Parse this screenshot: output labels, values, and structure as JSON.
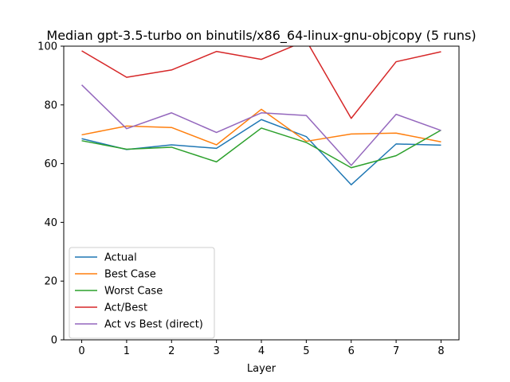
{
  "chart_data": {
    "type": "line",
    "title": "Median gpt-3.5-turbo on binutils/x86_64-linux-gnu-objcopy (5 runs)",
    "xlabel": "Layer",
    "ylabel": "",
    "x": [
      0,
      1,
      2,
      3,
      4,
      5,
      6,
      7,
      8
    ],
    "xlim": [
      -0.4,
      8.4
    ],
    "ylim": [
      0,
      100
    ],
    "yticks": [
      0,
      20,
      40,
      60,
      80,
      100
    ],
    "grid": false,
    "legend_position": "lower-left",
    "series": [
      {
        "name": "Actual",
        "color": "#1f77b4",
        "values": [
          68.5,
          64.8,
          66.4,
          65.2,
          75.0,
          69.2,
          52.8,
          66.7,
          66.3
        ]
      },
      {
        "name": "Best Case",
        "color": "#ff7f0e",
        "values": [
          69.8,
          72.8,
          72.3,
          66.4,
          78.5,
          67.6,
          70.1,
          70.4,
          67.4
        ]
      },
      {
        "name": "Worst Case",
        "color": "#2ca02c",
        "values": [
          67.8,
          64.9,
          65.6,
          60.6,
          72.1,
          67.2,
          58.6,
          62.7,
          71.4
        ]
      },
      {
        "name": "Act/Best",
        "color": "#d62728",
        "values": [
          98.4,
          89.4,
          91.9,
          98.2,
          95.5,
          101.9,
          75.4,
          94.7,
          98.1
        ]
      },
      {
        "name": "Act vs Best (direct)",
        "color": "#9467bd",
        "values": [
          86.8,
          71.9,
          77.3,
          70.6,
          77.3,
          76.4,
          59.4,
          76.8,
          71.3
        ]
      }
    ]
  }
}
